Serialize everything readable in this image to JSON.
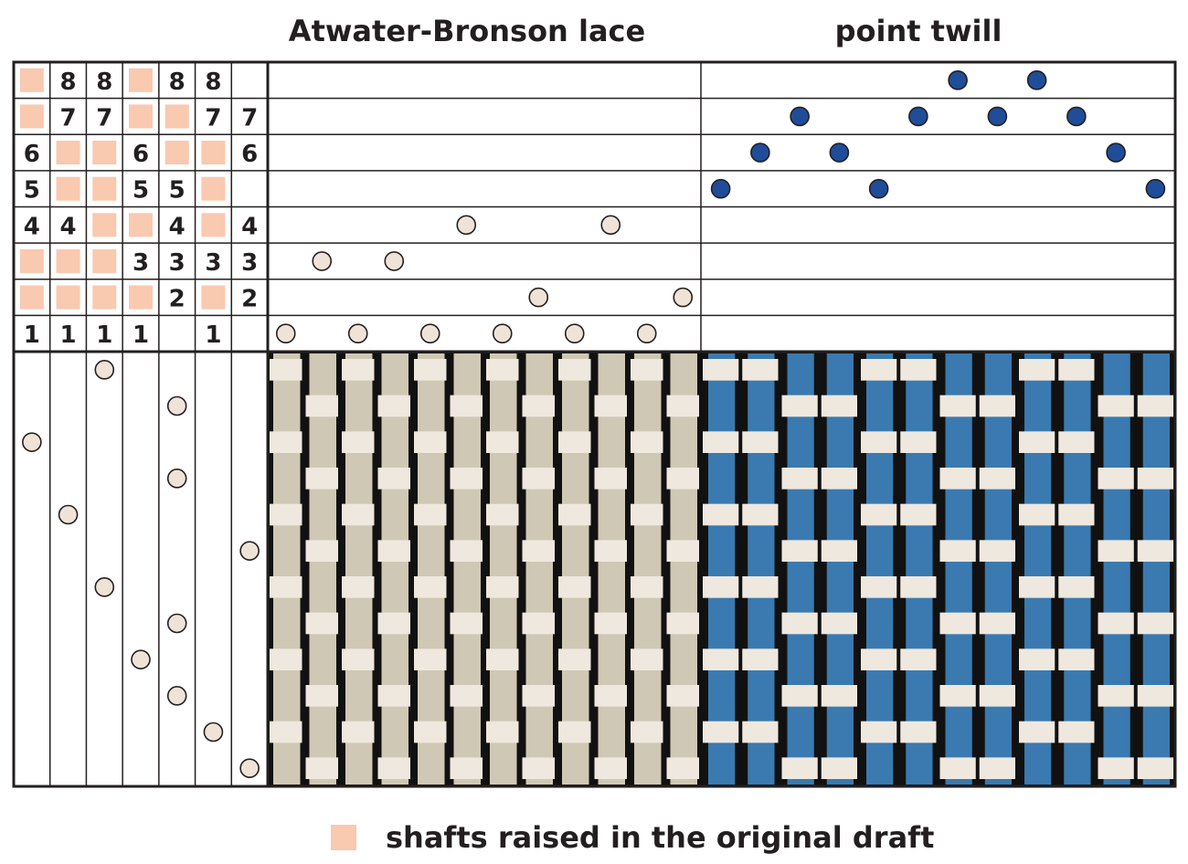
{
  "titles": {
    "lace": "Atwater-Bronson lace",
    "twill": "point twill"
  },
  "legend": {
    "label": "shafts raised in the original draft"
  },
  "colors": {
    "raised_marker": "#f9c9b0",
    "lace_warp": "#cfc8b4",
    "lace_weft": "#efe8df",
    "twill_warp": "#3a7ab0",
    "twill_weft": "#efe8df",
    "shadow": "#111111",
    "lace_dot": "#efe3d7",
    "twill_dot": "#1f4d9a",
    "grid_line": "#231f20"
  },
  "tieup": {
    "rows": [
      [
        "R",
        "8",
        "8",
        "R",
        "8",
        "8",
        ""
      ],
      [
        "R",
        "7",
        "7",
        "R",
        "R",
        "7",
        "7"
      ],
      [
        "6",
        "R",
        "R",
        "6",
        "R",
        "R",
        "6"
      ],
      [
        "5",
        "R",
        "R",
        "5",
        "5",
        "R",
        ""
      ],
      [
        "4",
        "4",
        "R",
        "R",
        "4",
        "R",
        "4"
      ],
      [
        "R",
        "R",
        "R",
        "3",
        "3",
        "3",
        "3"
      ],
      [
        "R",
        "R",
        "R",
        "R",
        "2",
        "R",
        "2"
      ],
      [
        "1",
        "1",
        "1",
        "1",
        "",
        "1",
        ""
      ]
    ]
  },
  "threading": {
    "lace_shafts": [
      1,
      3,
      1,
      3,
      1,
      4,
      1,
      2,
      1,
      4,
      1,
      2
    ],
    "twill_shafts": [
      5,
      6,
      7,
      6,
      5,
      7,
      8,
      7,
      8,
      7,
      6,
      5
    ]
  },
  "treadling": {
    "picks": [
      7,
      6,
      5,
      4,
      5,
      3,
      7,
      2,
      5,
      1,
      5,
      3
    ]
  }
}
